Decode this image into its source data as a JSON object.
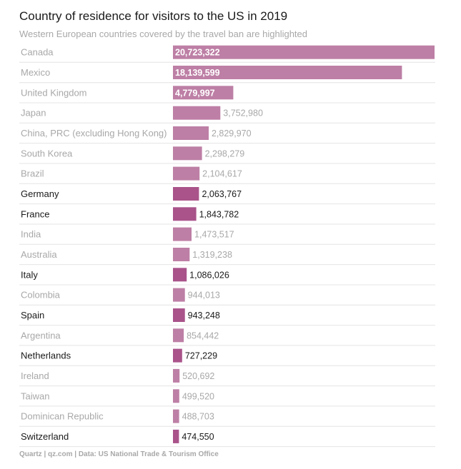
{
  "chart_data": {
    "type": "bar",
    "orientation": "horizontal",
    "title": "Country of residence for visitors to the US in 2019",
    "subtitle": "Western European countries covered by the travel ban are highlighted",
    "xlabel": "",
    "ylabel": "",
    "grid": false,
    "xlim": [
      0,
      20723322
    ],
    "categories": [
      "Canada",
      "Mexico",
      "United Kingdom",
      "Japan",
      "China, PRC (excluding Hong Kong)",
      "South Korea",
      "Brazil",
      "Germany",
      "France",
      "India",
      "Australia",
      "Italy",
      "Colombia",
      "Spain",
      "Argentina",
      "Netherlands",
      "Ireland",
      "Taiwan",
      "Dominican Republic",
      "Switzerland"
    ],
    "values": [
      20723322,
      18139599,
      4779997,
      3752980,
      2829970,
      2298279,
      2104617,
      2063767,
      1843782,
      1473517,
      1319238,
      1086026,
      944013,
      943248,
      854442,
      727229,
      520692,
      499520,
      488703,
      474550
    ],
    "value_labels": [
      "20,723,322",
      "18,139,599",
      "4,779,997",
      "3,752,980",
      "2,829,970",
      "2,298,279",
      "2,104,617",
      "2,063,767",
      "1,843,782",
      "1,473,517",
      "1,319,238",
      "1,086,026",
      "944,013",
      "943,248",
      "854,442",
      "727,229",
      "520,692",
      "499,520",
      "488,703",
      "474,550"
    ],
    "highlighted": [
      false,
      false,
      false,
      false,
      false,
      false,
      false,
      true,
      true,
      false,
      false,
      true,
      false,
      true,
      false,
      true,
      false,
      false,
      false,
      true
    ],
    "colors": {
      "bar": "#bd7fa5",
      "bar_highlight": "#a9538a",
      "label": "#a8a8a8",
      "label_highlight": "#1a1a1a",
      "value_inside": "#ffffff",
      "divider": "#e4e4e4"
    }
  },
  "source": "Quartz | qz.com | Data: US National Trade & Tourism Office"
}
